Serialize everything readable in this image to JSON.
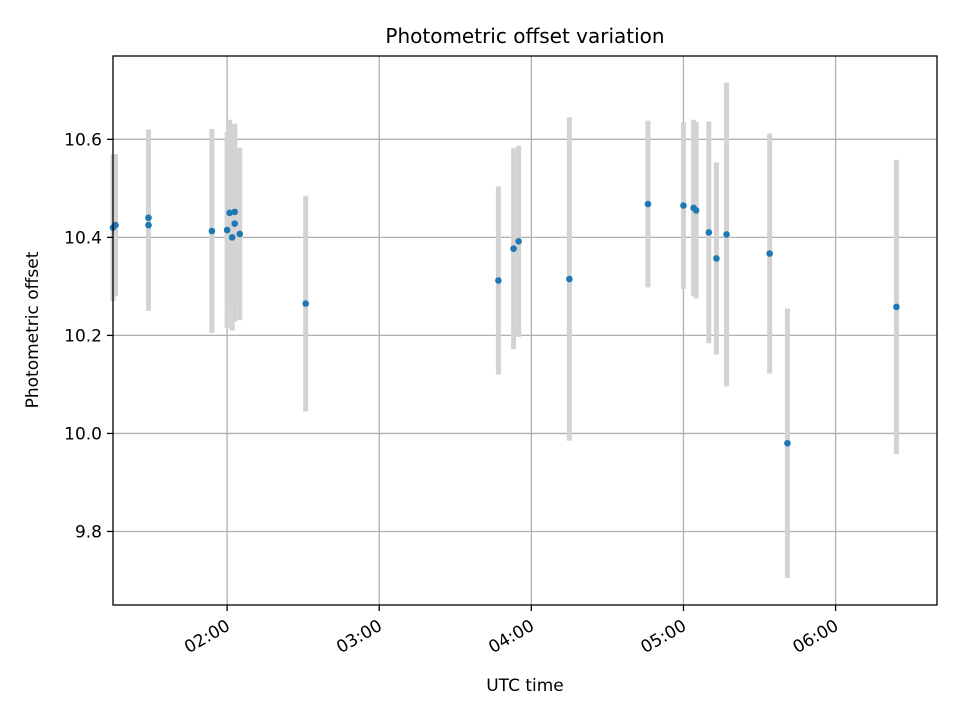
{
  "chart_data": {
    "type": "scatter",
    "title": "Photometric offset variation",
    "xlabel": "UTC time",
    "ylabel": "Photometric offset",
    "x_axis_type": "time",
    "xlim": [
      "01:15",
      "06:40"
    ],
    "ylim": [
      9.65,
      10.77
    ],
    "grid": true,
    "x_ticks": [
      "02:00",
      "03:00",
      "04:00",
      "05:00",
      "06:00"
    ],
    "y_ticks": [
      "9.8",
      "10.0",
      "10.2",
      "10.4",
      "10.6"
    ],
    "point_color": "#1f77b4",
    "error_bar_color": "#d3d3d3",
    "points": [
      {
        "t": "01:15",
        "y": 10.42,
        "err": 0.15
      },
      {
        "t": "01:16",
        "y": 10.425,
        "err": 0.145
      },
      {
        "t": "01:29",
        "y": 10.425,
        "err": 0.175
      },
      {
        "t": "01:29",
        "y": 10.44,
        "err": 0.18
      },
      {
        "t": "01:54",
        "y": 10.413,
        "err": 0.208
      },
      {
        "t": "02:00",
        "y": 10.415,
        "err": 0.2
      },
      {
        "t": "02:01",
        "y": 10.45,
        "err": 0.19
      },
      {
        "t": "02:02",
        "y": 10.4,
        "err": 0.19
      },
      {
        "t": "02:03",
        "y": 10.428,
        "err": 0.2
      },
      {
        "t": "02:03",
        "y": 10.452,
        "err": 0.18
      },
      {
        "t": "02:05",
        "y": 10.407,
        "err": 0.176
      },
      {
        "t": "02:31",
        "y": 10.265,
        "err": 0.22
      },
      {
        "t": "03:47",
        "y": 10.312,
        "err": 0.192
      },
      {
        "t": "03:53",
        "y": 10.377,
        "err": 0.205
      },
      {
        "t": "03:55",
        "y": 10.392,
        "err": 0.195
      },
      {
        "t": "04:15",
        "y": 10.315,
        "err": 0.33
      },
      {
        "t": "04:46",
        "y": 10.468,
        "err": 0.17
      },
      {
        "t": "05:00",
        "y": 10.465,
        "err": 0.17
      },
      {
        "t": "05:04",
        "y": 10.46,
        "err": 0.18
      },
      {
        "t": "05:05",
        "y": 10.455,
        "err": 0.18
      },
      {
        "t": "05:10",
        "y": 10.41,
        "err": 0.226
      },
      {
        "t": "05:13",
        "y": 10.357,
        "err": 0.196
      },
      {
        "t": "05:17",
        "y": 10.406,
        "err": 0.31
      },
      {
        "t": "05:34",
        "y": 10.367,
        "err": 0.245
      },
      {
        "t": "05:41",
        "y": 9.98,
        "err": 0.275
      },
      {
        "t": "06:24",
        "y": 10.258,
        "err": 0.3
      }
    ]
  }
}
